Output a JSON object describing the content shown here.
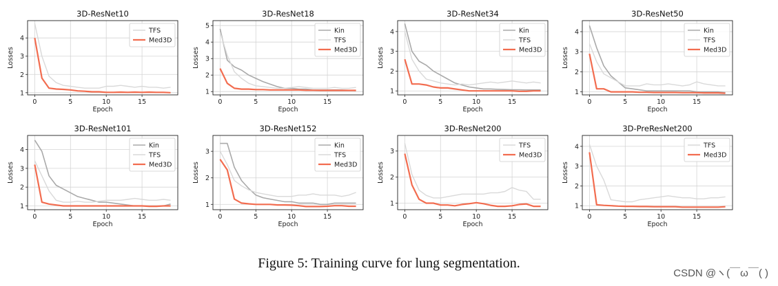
{
  "colors": {
    "Kin": "#a9a9a9",
    "TFS": "#d9d9d9",
    "Med3D": "#f26c4f"
  },
  "chart_data": [
    {
      "type": "line",
      "title": "3D-ResNet10",
      "xlabel": "Epoch",
      "ylabel": "Losses",
      "xlim": [
        -1,
        20
      ],
      "ylim": [
        0.88,
        4.95
      ],
      "xticks": [
        0,
        5,
        10,
        15
      ],
      "yticks": [
        1,
        2,
        3,
        4
      ],
      "x": [
        0,
        1,
        2,
        3,
        4,
        5,
        6,
        7,
        8,
        9,
        10,
        11,
        12,
        13,
        14,
        15,
        16,
        17,
        18,
        19
      ],
      "series": [
        {
          "name": "TFS",
          "values": [
            4.8,
            3.0,
            1.9,
            1.55,
            1.4,
            1.35,
            1.3,
            1.25,
            1.25,
            1.25,
            1.35,
            1.35,
            1.4,
            1.35,
            1.3,
            1.35,
            1.3,
            1.3,
            1.25,
            1.3
          ]
        },
        {
          "name": "Med3D",
          "values": [
            4.0,
            1.8,
            1.25,
            1.2,
            1.18,
            1.15,
            1.1,
            1.08,
            1.05,
            1.05,
            1.02,
            1.02,
            1.03,
            1.02,
            1.03,
            1.02,
            1.03,
            1.02,
            1.02,
            1.0
          ]
        }
      ]
    },
    {
      "type": "line",
      "title": "3D-ResNet18",
      "xlabel": "Epoch",
      "ylabel": "Losses",
      "xlim": [
        -1,
        20
      ],
      "ylim": [
        0.8,
        5.3
      ],
      "xticks": [
        0,
        5,
        10,
        15
      ],
      "yticks": [
        1,
        2,
        3,
        4,
        5
      ],
      "x": [
        0,
        1,
        2,
        3,
        4,
        5,
        6,
        7,
        8,
        9,
        10,
        11,
        12,
        13,
        14,
        15,
        16,
        17,
        18,
        19
      ],
      "series": [
        {
          "name": "Kin",
          "values": [
            4.8,
            2.9,
            2.5,
            2.3,
            2.0,
            1.8,
            1.6,
            1.45,
            1.3,
            1.2,
            1.2,
            1.15,
            1.15,
            1.1,
            1.1,
            1.1,
            1.1,
            1.1,
            1.08,
            1.05
          ]
        },
        {
          "name": "TFS",
          "values": [
            4.6,
            3.2,
            2.2,
            1.8,
            1.5,
            1.35,
            1.3,
            1.25,
            1.2,
            1.2,
            1.25,
            1.3,
            1.25,
            1.2,
            1.2,
            1.2,
            1.25,
            1.2,
            1.2,
            1.25
          ]
        },
        {
          "name": "Med3D",
          "values": [
            2.4,
            1.5,
            1.2,
            1.15,
            1.15,
            1.12,
            1.12,
            1.1,
            1.1,
            1.1,
            1.1,
            1.1,
            1.08,
            1.08,
            1.07,
            1.07,
            1.07,
            1.07,
            1.07,
            1.07
          ]
        }
      ]
    },
    {
      "type": "line",
      "title": "3D-ResNet34",
      "xlabel": "Epoch",
      "ylabel": "Losses",
      "xlim": [
        -1,
        20
      ],
      "ylim": [
        0.8,
        4.55
      ],
      "xticks": [
        0,
        5,
        10,
        15
      ],
      "yticks": [
        1,
        2,
        3,
        4
      ],
      "x": [
        0,
        1,
        2,
        3,
        4,
        5,
        6,
        7,
        8,
        9,
        10,
        11,
        12,
        13,
        14,
        15,
        16,
        17,
        18,
        19
      ],
      "series": [
        {
          "name": "Kin",
          "values": [
            4.4,
            3.0,
            2.5,
            2.3,
            2.0,
            1.8,
            1.6,
            1.4,
            1.3,
            1.2,
            1.15,
            1.1,
            1.1,
            1.08,
            1.07,
            1.06,
            1.06,
            1.05,
            1.05,
            1.05
          ]
        },
        {
          "name": "TFS",
          "values": [
            4.0,
            2.6,
            2.0,
            1.6,
            1.5,
            1.4,
            1.35,
            1.3,
            1.35,
            1.3,
            1.35,
            1.4,
            1.45,
            1.4,
            1.45,
            1.5,
            1.45,
            1.4,
            1.45,
            1.4
          ]
        },
        {
          "name": "Med3D",
          "values": [
            2.6,
            1.35,
            1.35,
            1.3,
            1.2,
            1.15,
            1.15,
            1.1,
            1.05,
            1.0,
            1.0,
            1.0,
            1.0,
            1.0,
            1.0,
            1.0,
            0.98,
            0.98,
            1.0,
            1.0
          ]
        }
      ]
    },
    {
      "type": "line",
      "title": "3D-ResNet50",
      "xlabel": "Epoch",
      "ylabel": "Losses",
      "xlim": [
        -1,
        20
      ],
      "ylim": [
        0.85,
        4.55
      ],
      "xticks": [
        0,
        5,
        10,
        15
      ],
      "yticks": [
        1,
        2,
        3,
        4
      ],
      "x": [
        0,
        1,
        2,
        3,
        4,
        5,
        6,
        7,
        8,
        9,
        10,
        11,
        12,
        13,
        14,
        15,
        16,
        17,
        18,
        19
      ],
      "series": [
        {
          "name": "Kin",
          "values": [
            4.3,
            3.2,
            2.3,
            1.8,
            1.5,
            1.2,
            1.15,
            1.1,
            1.05,
            1.05,
            1.05,
            1.05,
            1.05,
            1.05,
            1.05,
            1.0,
            1.0,
            1.0,
            1.0,
            0.97
          ]
        },
        {
          "name": "TFS",
          "values": [
            3.4,
            2.5,
            1.9,
            1.7,
            1.5,
            1.3,
            1.3,
            1.3,
            1.4,
            1.35,
            1.35,
            1.4,
            1.35,
            1.3,
            1.35,
            1.5,
            1.4,
            1.35,
            1.3,
            1.3
          ]
        },
        {
          "name": "Med3D",
          "values": [
            2.9,
            1.15,
            1.15,
            1.0,
            1.0,
            1.0,
            1.0,
            0.98,
            0.98,
            0.97,
            0.97,
            0.97,
            0.97,
            0.96,
            0.96,
            0.96,
            0.95,
            0.95,
            0.95,
            0.93
          ]
        }
      ]
    },
    {
      "type": "line",
      "title": "3D-ResNet101",
      "xlabel": "Epoch",
      "ylabel": "Losses",
      "xlim": [
        -1,
        20
      ],
      "ylim": [
        0.8,
        4.75
      ],
      "xticks": [
        0,
        5,
        10,
        15
      ],
      "yticks": [
        1,
        2,
        3,
        4
      ],
      "x": [
        0,
        1,
        2,
        3,
        4,
        5,
        6,
        7,
        8,
        9,
        10,
        11,
        12,
        13,
        14,
        15,
        16,
        17,
        18,
        19
      ],
      "series": [
        {
          "name": "Kin",
          "values": [
            4.5,
            3.9,
            2.6,
            2.1,
            1.9,
            1.7,
            1.5,
            1.4,
            1.3,
            1.2,
            1.2,
            1.15,
            1.1,
            1.05,
            1.0,
            1.0,
            1.0,
            1.0,
            1.0,
            1.1
          ]
        },
        {
          "name": "TFS",
          "values": [
            3.4,
            2.6,
            1.8,
            1.3,
            1.2,
            1.2,
            1.25,
            1.2,
            1.2,
            1.25,
            1.3,
            1.3,
            1.3,
            1.35,
            1.4,
            1.35,
            1.3,
            1.3,
            1.35,
            1.3
          ]
        },
        {
          "name": "Med3D",
          "values": [
            3.2,
            1.2,
            1.1,
            1.05,
            1.0,
            1.0,
            1.0,
            1.0,
            1.0,
            1.0,
            1.0,
            1.0,
            1.0,
            1.0,
            1.0,
            1.0,
            0.98,
            0.98,
            1.0,
            1.0
          ]
        }
      ]
    },
    {
      "type": "line",
      "title": "3D-ResNet152",
      "xlabel": "Epoch",
      "ylabel": "Losses",
      "xlim": [
        -1,
        20
      ],
      "ylim": [
        0.8,
        3.6
      ],
      "xticks": [
        0,
        5,
        10,
        15
      ],
      "yticks": [
        1,
        2,
        3
      ],
      "x": [
        0,
        1,
        2,
        3,
        4,
        5,
        6,
        7,
        8,
        9,
        10,
        11,
        12,
        13,
        14,
        15,
        16,
        17,
        18,
        19
      ],
      "series": [
        {
          "name": "Kin",
          "values": [
            3.3,
            3.3,
            2.4,
            1.9,
            1.6,
            1.35,
            1.25,
            1.2,
            1.15,
            1.1,
            1.1,
            1.05,
            1.05,
            1.05,
            1.0,
            1.0,
            1.05,
            1.05,
            1.05,
            1.05
          ]
        },
        {
          "name": "TFS",
          "values": [
            3.0,
            2.5,
            1.9,
            1.7,
            1.55,
            1.45,
            1.4,
            1.35,
            1.3,
            1.3,
            1.3,
            1.35,
            1.35,
            1.4,
            1.35,
            1.35,
            1.35,
            1.3,
            1.35,
            1.45
          ]
        },
        {
          "name": "Med3D",
          "values": [
            2.7,
            2.3,
            1.2,
            1.05,
            1.02,
            1.0,
            1.0,
            1.0,
            0.98,
            0.98,
            0.97,
            0.95,
            0.92,
            0.92,
            0.92,
            0.93,
            0.95,
            0.95,
            0.93,
            0.93
          ]
        }
      ]
    },
    {
      "type": "line",
      "title": "3D-ResNet200",
      "xlabel": "Epoch",
      "ylabel": "Losses",
      "xlim": [
        -1,
        20
      ],
      "ylim": [
        0.75,
        3.6
      ],
      "xticks": [
        0,
        5,
        10,
        15
      ],
      "yticks": [
        1,
        2,
        3
      ],
      "x": [
        0,
        1,
        2,
        3,
        4,
        5,
        6,
        7,
        8,
        9,
        10,
        11,
        12,
        13,
        14,
        15,
        16,
        17,
        18,
        19
      ],
      "series": [
        {
          "name": "TFS",
          "values": [
            3.3,
            2.1,
            1.5,
            1.3,
            1.2,
            1.2,
            1.25,
            1.3,
            1.35,
            1.35,
            1.35,
            1.35,
            1.4,
            1.4,
            1.45,
            1.6,
            1.5,
            1.45,
            1.15,
            1.15
          ]
        },
        {
          "name": "Med3D",
          "values": [
            2.9,
            1.7,
            1.15,
            1.0,
            1.0,
            0.93,
            0.93,
            0.9,
            0.95,
            0.98,
            1.02,
            0.98,
            0.92,
            0.88,
            0.88,
            0.9,
            0.95,
            0.97,
            0.88,
            0.88
          ]
        }
      ]
    },
    {
      "type": "line",
      "title": "3D-PreResNet200",
      "xlabel": "Epoch",
      "ylabel": "Losses",
      "xlim": [
        -1,
        20
      ],
      "ylim": [
        0.8,
        4.55
      ],
      "xticks": [
        0,
        5,
        10,
        15
      ],
      "yticks": [
        1,
        2,
        3,
        4
      ],
      "x": [
        0,
        1,
        2,
        3,
        4,
        5,
        6,
        7,
        8,
        9,
        10,
        11,
        12,
        13,
        14,
        15,
        16,
        17,
        18,
        19
      ],
      "series": [
        {
          "name": "TFS",
          "values": [
            4.1,
            3.0,
            2.3,
            1.3,
            1.25,
            1.2,
            1.2,
            1.3,
            1.35,
            1.4,
            1.45,
            1.5,
            1.45,
            1.4,
            1.4,
            1.35,
            1.35,
            1.4,
            1.4,
            1.45
          ]
        },
        {
          "name": "Med3D",
          "values": [
            3.7,
            1.05,
            1.02,
            1.0,
            0.98,
            0.97,
            0.97,
            0.96,
            0.96,
            0.95,
            0.95,
            0.95,
            0.95,
            0.93,
            0.93,
            0.93,
            0.93,
            0.93,
            0.93,
            0.95
          ]
        }
      ]
    }
  ],
  "caption": "Figure 5: Training curve for lung segmentation.",
  "watermark": "CSDN @ヽ(￣ω￣( )"
}
